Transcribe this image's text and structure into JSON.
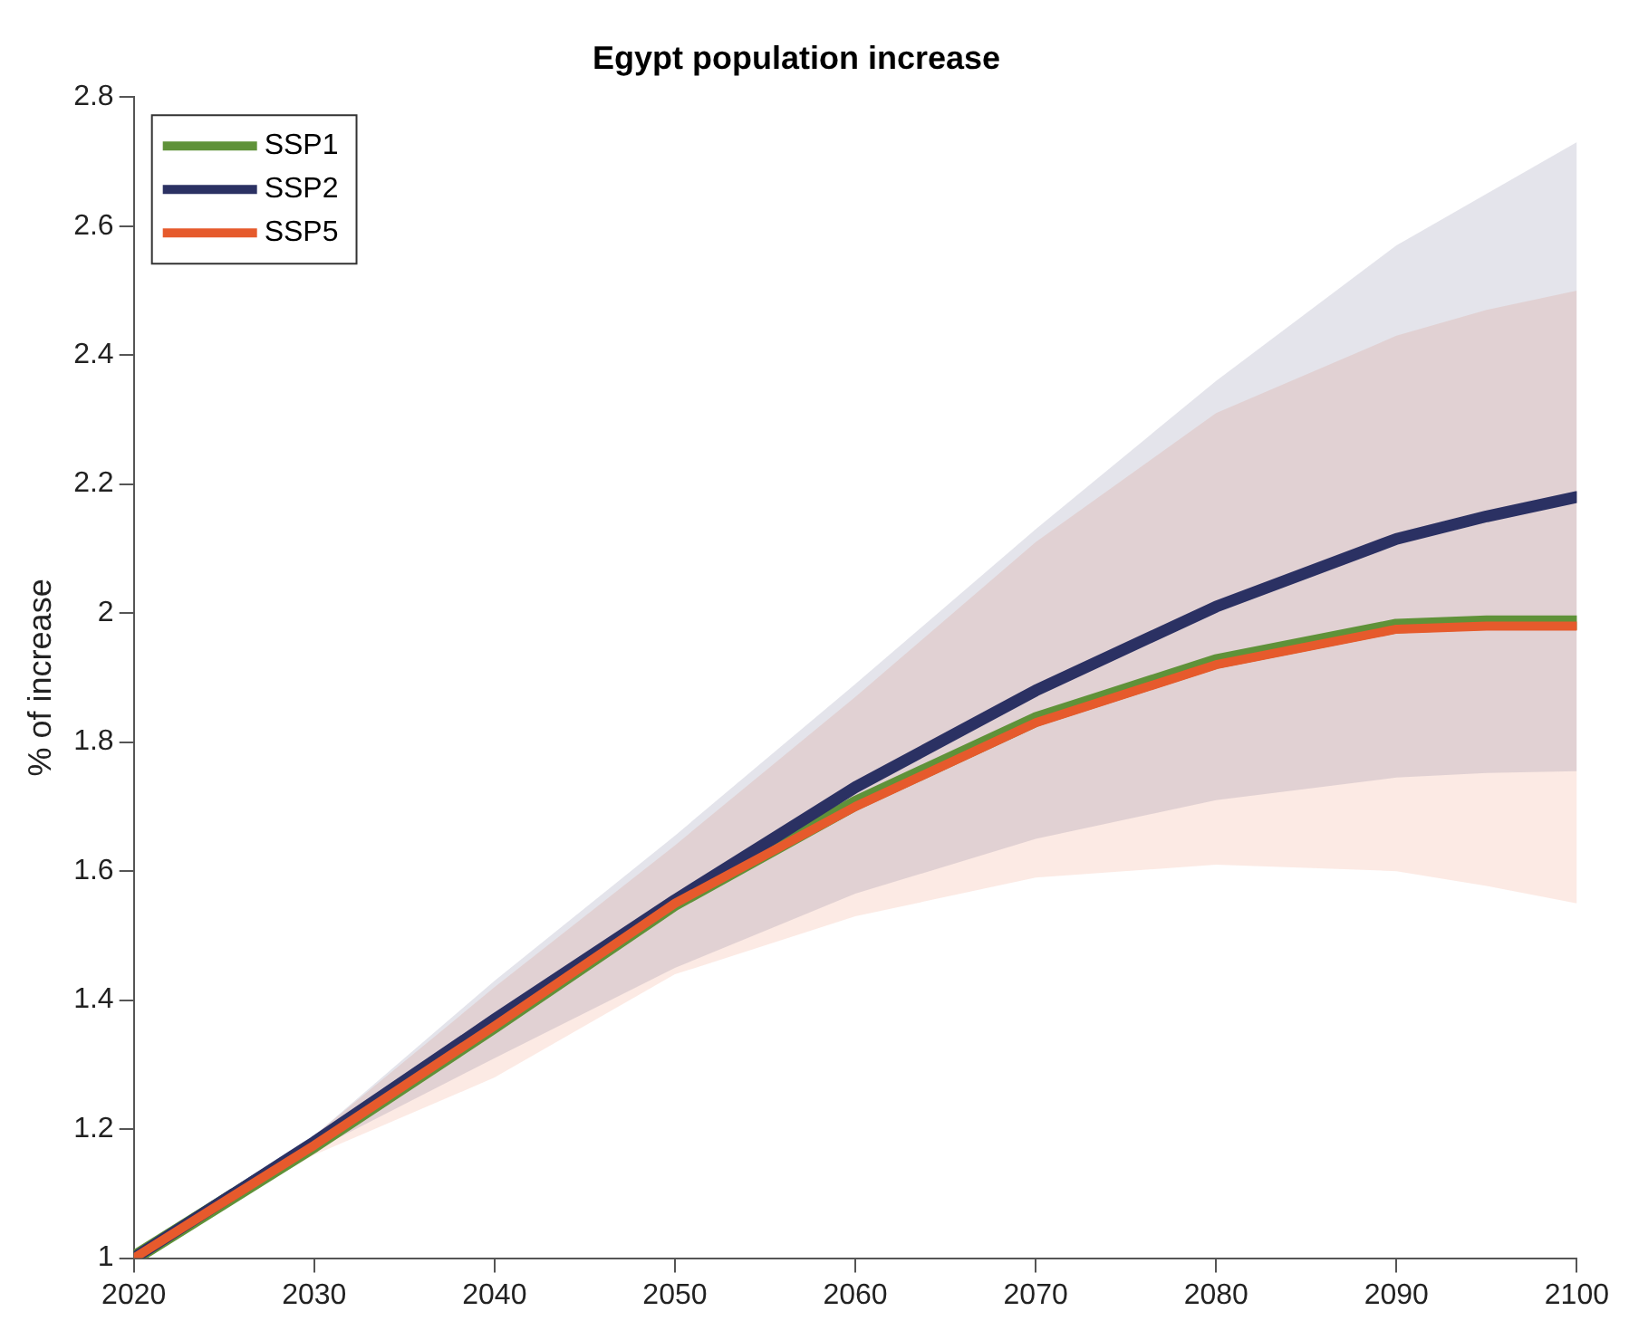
{
  "chart_data": {
    "type": "line",
    "title": "Egypt population increase",
    "ylabel": "% of increase",
    "x": [
      2020,
      2030,
      2040,
      2050,
      2060,
      2070,
      2080,
      2090,
      2095,
      2100
    ],
    "xlim": [
      2020,
      2100
    ],
    "xticks": [
      2020,
      2030,
      2040,
      2050,
      2060,
      2070,
      2080,
      2090,
      2100
    ],
    "ylim": [
      1,
      2.8
    ],
    "yticks": [
      1,
      1.2,
      1.4,
      1.6,
      1.8,
      2,
      2.2,
      2.4,
      2.6,
      2.8
    ],
    "grid": false,
    "legend": "top left",
    "marker": "none",
    "line_style": "solid",
    "series": [
      {
        "name": "SSP1",
        "color": "#5f9239",
        "values": [
          1,
          1.175,
          1.36,
          1.55,
          1.705,
          1.835,
          1.925,
          1.98,
          1.985,
          1.985
        ]
      },
      {
        "name": "SSP2",
        "color": "#2b3163",
        "values": [
          1,
          1.18,
          1.37,
          1.555,
          1.73,
          1.88,
          2.01,
          2.115,
          2.15,
          2.18
        ],
        "lower": [
          1,
          1.167,
          1.31,
          1.45,
          1.565,
          1.65,
          1.71,
          1.745,
          1.752,
          1.755
        ],
        "upper": [
          1,
          1.19,
          1.43,
          1.655,
          1.89,
          2.13,
          2.36,
          2.57,
          2.65,
          2.73
        ]
      },
      {
        "name": "SSP5",
        "color": "#e65a2c",
        "values": [
          1,
          1.175,
          1.36,
          1.55,
          1.7,
          1.83,
          1.92,
          1.975,
          1.98,
          1.98
        ],
        "lower": [
          1,
          1.16,
          1.28,
          1.44,
          1.53,
          1.59,
          1.61,
          1.6,
          1.577,
          1.55
        ],
        "upper": [
          1,
          1.19,
          1.42,
          1.64,
          1.87,
          2.11,
          2.31,
          2.43,
          2.47,
          2.5
        ]
      }
    ]
  }
}
